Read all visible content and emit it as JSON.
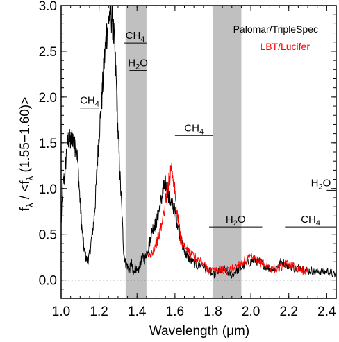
{
  "chart_data": {
    "type": "line",
    "xlabel_prefix": "Wavelength (",
    "xlabel_unit": "μm",
    "xlabel_suffix": ")",
    "ylabel_f": "f",
    "ylabel_sub": "λ",
    "ylabel_mid": " / <f",
    "ylabel_end": " (1.55−1.60)>",
    "xlim": [
      1.0,
      2.45
    ],
    "ylim": [
      -0.2,
      3.0
    ],
    "x_ticks": [
      "1.0",
      "1.2",
      "1.4",
      "1.6",
      "1.8",
      "2.0",
      "2.2",
      "2.4"
    ],
    "x_tick_values": [
      1.0,
      1.2,
      1.4,
      1.6,
      1.8,
      2.0,
      2.2,
      2.4
    ],
    "y_ticks": [
      "0.0",
      "0.5",
      "1.0",
      "1.5",
      "2.0",
      "2.5",
      "3.0"
    ],
    "y_tick_values": [
      0.0,
      0.5,
      1.0,
      1.5,
      2.0,
      2.5,
      3.0
    ],
    "zero_line": 0.0,
    "shaded_bands": [
      {
        "x0": 1.34,
        "x1": 1.45
      },
      {
        "x0": 1.8,
        "x1": 1.95
      }
    ],
    "legend": {
      "placement": "top-right",
      "entries": [
        {
          "label": "Palomar/TripleSpec",
          "color": "#000000"
        },
        {
          "label": "LBT/Lucifer",
          "color": "#ff0000"
        }
      ]
    },
    "annotations": [
      {
        "molecule": "CH",
        "subscript": "4",
        "x0": 1.1,
        "x1": 1.2,
        "y": 1.88
      },
      {
        "molecule": "CH",
        "subscript": "4",
        "x0": 1.33,
        "x1": 1.45,
        "y": 2.59
      },
      {
        "molecule": "H",
        "subscript": "2",
        "suffix": "O",
        "x0": 1.36,
        "x1": 1.45,
        "y": 2.29
      },
      {
        "molecule": "CH",
        "subscript": "4",
        "x0": 1.6,
        "x1": 1.8,
        "y": 1.58
      },
      {
        "molecule": "H",
        "subscript": "2",
        "suffix": "O",
        "x0": 1.78,
        "x1": 2.06,
        "y": 0.58
      },
      {
        "molecule": "CH",
        "subscript": "4",
        "x0": 2.18,
        "x1": 2.45,
        "y": 0.58
      },
      {
        "molecule": "H",
        "subscript": "2",
        "suffix": "O",
        "x0": 2.4,
        "x1": 2.45,
        "y": 0.98
      }
    ],
    "series": [
      {
        "color": "#000000",
        "x": [
          1.0,
          1.01,
          1.02,
          1.03,
          1.04,
          1.05,
          1.06,
          1.07,
          1.08,
          1.09,
          1.1,
          1.11,
          1.12,
          1.13,
          1.14,
          1.15,
          1.16,
          1.17,
          1.18,
          1.19,
          1.2,
          1.21,
          1.22,
          1.23,
          1.24,
          1.25,
          1.26,
          1.27,
          1.28,
          1.29,
          1.3,
          1.31,
          1.32,
          1.33,
          1.34,
          1.35,
          1.36,
          1.37,
          1.38,
          1.39,
          1.4,
          1.41,
          1.42,
          1.43,
          1.44,
          1.45,
          1.46,
          1.47,
          1.48,
          1.49,
          1.5,
          1.51,
          1.52,
          1.53,
          1.54,
          1.55,
          1.56,
          1.57,
          1.58,
          1.59,
          1.6,
          1.61,
          1.62,
          1.63,
          1.64,
          1.65,
          1.66,
          1.67,
          1.68,
          1.7,
          1.72,
          1.74,
          1.76,
          1.78,
          1.8,
          1.82,
          1.84,
          1.86,
          1.88,
          1.9,
          1.92,
          1.94,
          1.96,
          1.98,
          2.0,
          2.02,
          2.04,
          2.06,
          2.08,
          2.1,
          2.12,
          2.14,
          2.16,
          2.18,
          2.2,
          2.22,
          2.24,
          2.26,
          2.28,
          2.3,
          2.32,
          2.34,
          2.36,
          2.38,
          2.4,
          2.42,
          2.44,
          2.45
        ],
        "y": [
          0.6,
          1.05,
          1.15,
          1.45,
          1.55,
          1.5,
          1.58,
          1.45,
          1.5,
          1.2,
          0.85,
          0.55,
          0.35,
          0.25,
          0.2,
          0.28,
          0.45,
          0.6,
          0.85,
          1.25,
          1.6,
          1.85,
          2.15,
          2.45,
          2.7,
          2.85,
          2.95,
          2.85,
          2.6,
          2.2,
          1.6,
          1.15,
          0.75,
          0.3,
          0.18,
          0.15,
          0.1,
          0.2,
          0.05,
          0.15,
          0.08,
          0.12,
          0.2,
          0.25,
          0.22,
          0.3,
          0.35,
          0.45,
          0.55,
          0.6,
          0.62,
          0.7,
          0.8,
          0.9,
          1.0,
          1.05,
          1.0,
          0.9,
          0.85,
          0.8,
          0.75,
          0.65,
          0.55,
          0.45,
          0.38,
          0.32,
          0.28,
          0.25,
          0.22,
          0.18,
          0.15,
          0.18,
          0.12,
          0.1,
          0.05,
          0.08,
          0.1,
          0.12,
          0.08,
          0.05,
          0.1,
          0.12,
          0.15,
          0.18,
          0.2,
          0.22,
          0.2,
          0.18,
          0.15,
          0.12,
          0.12,
          0.15,
          0.2,
          0.18,
          0.15,
          0.14,
          0.12,
          0.15,
          0.12,
          0.1,
          0.1,
          0.08,
          0.1,
          0.08,
          0.1,
          0.08,
          0.05,
          0.05
        ]
      },
      {
        "color": "#ff0000",
        "x": [
          1.45,
          1.47,
          1.49,
          1.51,
          1.53,
          1.55,
          1.56,
          1.57,
          1.58,
          1.59,
          1.6,
          1.61,
          1.62,
          1.63,
          1.64,
          1.66,
          1.68,
          1.7,
          1.72,
          1.74,
          1.76,
          1.78,
          1.8,
          1.82,
          1.84,
          1.86,
          1.88,
          1.9,
          1.92,
          1.94,
          1.96,
          1.98,
          2.0,
          2.02,
          2.04,
          2.06,
          2.08,
          2.1,
          2.12,
          2.14,
          2.16,
          2.18,
          2.2,
          2.22,
          2.24,
          2.26,
          2.28,
          2.3
        ],
        "y": [
          0.25,
          0.28,
          0.35,
          0.45,
          0.6,
          0.85,
          1.0,
          1.1,
          1.25,
          1.15,
          0.95,
          0.75,
          0.6,
          0.45,
          0.4,
          0.35,
          0.3,
          0.25,
          0.22,
          0.2,
          0.15,
          0.12,
          0.1,
          0.1,
          0.12,
          0.1,
          0.1,
          0.12,
          0.15,
          0.18,
          0.2,
          0.22,
          0.25,
          0.22,
          0.2,
          0.18,
          0.16,
          0.14,
          0.13,
          0.12,
          0.14,
          0.16,
          0.18,
          0.16,
          0.14,
          0.12,
          0.1,
          0.08
        ]
      }
    ]
  }
}
